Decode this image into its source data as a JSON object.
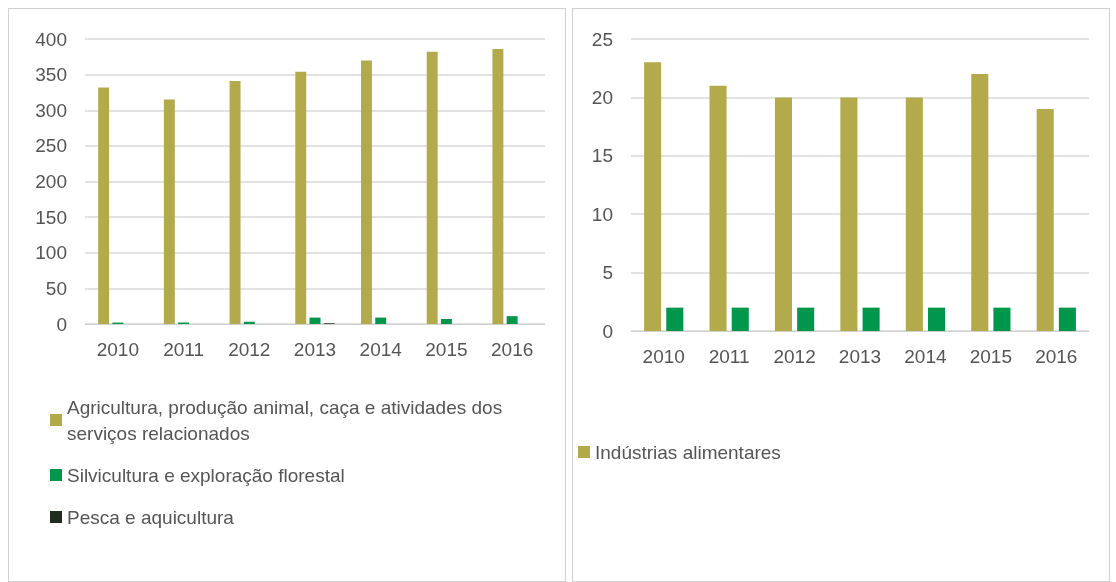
{
  "chart_data": [
    {
      "type": "bar",
      "categories": [
        "2010",
        "2011",
        "2012",
        "2013",
        "2014",
        "2015",
        "2016"
      ],
      "series": [
        {
          "name": "Agricultura, produção animal, caça e atividades dos serviços relacionados",
          "color": "#b3aa4b",
          "values": [
            332,
            315,
            341,
            354,
            370,
            382,
            386
          ]
        },
        {
          "name": "Silvicultura e exploração florestal",
          "color": "#00964b",
          "values": [
            2,
            2,
            3,
            9,
            9,
            7,
            11
          ]
        },
        {
          "name": "Pesca e aquicultura",
          "color": "#1e2d1e",
          "values": [
            0,
            0,
            0,
            1,
            0,
            0,
            0
          ]
        }
      ],
      "ylim": [
        0,
        400
      ],
      "yticks": [
        0,
        50,
        100,
        150,
        200,
        250,
        300,
        350,
        400
      ],
      "grid": "y",
      "legend": "bottom"
    },
    {
      "type": "bar",
      "categories": [
        "2010",
        "2011",
        "2012",
        "2013",
        "2014",
        "2015",
        "2016"
      ],
      "series": [
        {
          "name": "Indústrias alimentares",
          "color": "#b3aa4b",
          "values": [
            23,
            21,
            20,
            20,
            20,
            22,
            19
          ]
        },
        {
          "color": "#00964b",
          "values": [
            2,
            2,
            2,
            2,
            2,
            2,
            2
          ]
        }
      ],
      "ylim": [
        0,
        25
      ],
      "yticks": [
        0,
        5,
        10,
        15,
        20,
        25
      ],
      "grid": "y",
      "legend": "bottom"
    }
  ]
}
